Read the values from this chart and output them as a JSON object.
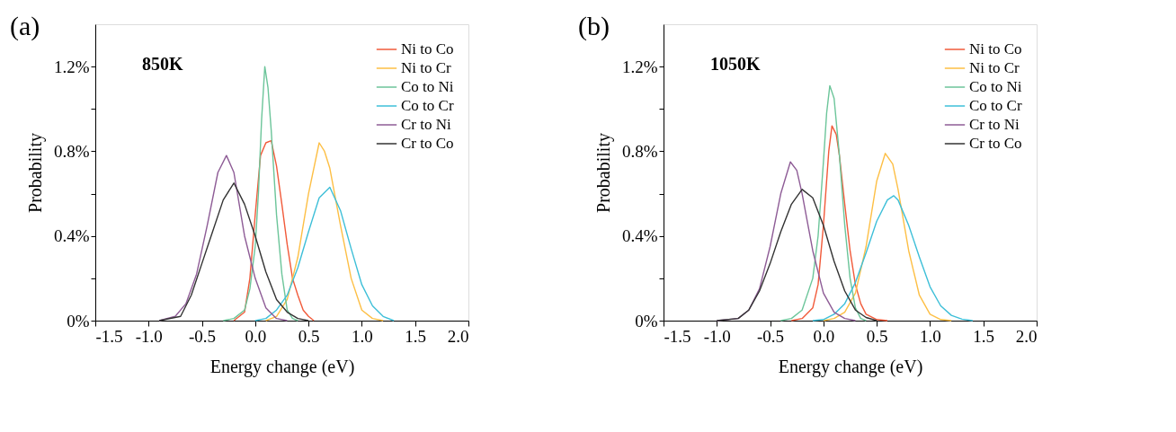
{
  "chart_data": [
    {
      "type": "line",
      "annotations": [
        "(a)",
        "850K"
      ],
      "xlabel": "Energy change (eV)",
      "ylabel": "Probability",
      "xlim": [
        -1.5,
        2.0
      ],
      "xticks": [
        {
          "value": -1.5,
          "label": "-1.5"
        },
        {
          "value": -1.0,
          "label": "-1.0"
        },
        {
          "value": -0.5,
          "label": "-0.5"
        },
        {
          "value": 0,
          "label": "0.0"
        },
        {
          "value": 0.5,
          "label": "0.5"
        },
        {
          "value": 1.0,
          "label": "1.0"
        },
        {
          "value": 1.5,
          "label": "1.5"
        },
        {
          "value": 2.0,
          "label": "2.0"
        }
      ],
      "ylim": [
        0,
        1.4
      ],
      "yticks": [
        {
          "value": 0,
          "label": "0%"
        },
        {
          "value": 0.2,
          "label": null
        },
        {
          "value": 0.4,
          "label": "0.4%"
        },
        {
          "value": 0.6,
          "label": null
        },
        {
          "value": 0.8,
          "label": "0.8%"
        },
        {
          "value": 1.0,
          "label": null
        },
        {
          "value": 1.2,
          "label": "1.2%"
        }
      ],
      "grid": false,
      "legend": "top right",
      "marker": "none",
      "line_style": "solid",
      "series": [
        {
          "name": "Ni to Co",
          "color": "#f15a3a",
          "x": [
            -0.2,
            -0.1,
            -0.05,
            0,
            0.05,
            0.1,
            0.15,
            0.2,
            0.25,
            0.3,
            0.35,
            0.4,
            0.45,
            0.5,
            0.55
          ],
          "values": [
            0,
            0.04,
            0.2,
            0.5,
            0.78,
            0.84,
            0.85,
            0.73,
            0.55,
            0.36,
            0.2,
            0.12,
            0.05,
            0.02,
            0
          ]
        },
        {
          "name": "Ni to Cr",
          "color": "#fdbf45",
          "x": [
            0.1,
            0.2,
            0.3,
            0.4,
            0.5,
            0.6,
            0.65,
            0.7,
            0.8,
            0.9,
            1.0,
            1.1,
            1.2
          ],
          "values": [
            0,
            0.02,
            0.1,
            0.3,
            0.6,
            0.84,
            0.8,
            0.72,
            0.45,
            0.2,
            0.05,
            0.01,
            0
          ]
        },
        {
          "name": "Co to Ni",
          "color": "#6cc59a",
          "x": [
            -0.3,
            -0.2,
            -0.1,
            -0.05,
            0,
            0.03,
            0.06,
            0.09,
            0.12,
            0.15,
            0.2,
            0.25,
            0.3,
            0.35,
            0.4
          ],
          "values": [
            0,
            0.01,
            0.05,
            0.15,
            0.35,
            0.6,
            0.95,
            1.2,
            1.1,
            0.9,
            0.5,
            0.22,
            0.05,
            0.01,
            0
          ]
        },
        {
          "name": "Co to Cr",
          "color": "#3ebfd8",
          "x": [
            0,
            0.1,
            0.2,
            0.3,
            0.4,
            0.5,
            0.6,
            0.7,
            0.8,
            0.9,
            1.0,
            1.1,
            1.2,
            1.3
          ],
          "values": [
            0,
            0.01,
            0.05,
            0.12,
            0.25,
            0.42,
            0.58,
            0.63,
            0.52,
            0.34,
            0.17,
            0.07,
            0.02,
            0
          ]
        },
        {
          "name": "Cr to Ni",
          "color": "#8e5c96",
          "x": [
            -0.9,
            -0.75,
            -0.65,
            -0.55,
            -0.45,
            -0.35,
            -0.27,
            -0.2,
            -0.1,
            0,
            0.1,
            0.2,
            0.3
          ],
          "values": [
            0,
            0.02,
            0.08,
            0.22,
            0.45,
            0.7,
            0.78,
            0.7,
            0.4,
            0.2,
            0.06,
            0.01,
            0
          ]
        },
        {
          "name": "Cr to Co",
          "color": "#333333",
          "x": [
            -0.9,
            -0.7,
            -0.6,
            -0.5,
            -0.4,
            -0.3,
            -0.2,
            -0.1,
            0,
            0.1,
            0.2,
            0.3,
            0.4,
            0.5
          ],
          "values": [
            0,
            0.02,
            0.12,
            0.27,
            0.42,
            0.57,
            0.65,
            0.55,
            0.4,
            0.23,
            0.1,
            0.04,
            0.01,
            0
          ]
        }
      ]
    },
    {
      "type": "line",
      "annotations": [
        "(b)",
        "1050K"
      ],
      "xlabel": "Energy change (eV)",
      "ylabel": "Probability",
      "xlim": [
        -1.5,
        2.0
      ],
      "xticks": [
        {
          "value": -1.5,
          "label": "-1.5"
        },
        {
          "value": -1.0,
          "label": "-1.0"
        },
        {
          "value": -0.5,
          "label": "-0.5"
        },
        {
          "value": 0,
          "label": "0.0"
        },
        {
          "value": 0.5,
          "label": "0.5"
        },
        {
          "value": 1.0,
          "label": "1.0"
        },
        {
          "value": 1.5,
          "label": "1.5"
        },
        {
          "value": 2.0,
          "label": "2.0"
        }
      ],
      "ylim": [
        0,
        1.4
      ],
      "yticks": [
        {
          "value": 0,
          "label": "0%"
        },
        {
          "value": 0.2,
          "label": null
        },
        {
          "value": 0.4,
          "label": "0.4%"
        },
        {
          "value": 0.6,
          "label": null
        },
        {
          "value": 0.8,
          "label": "0.8%"
        },
        {
          "value": 1.0,
          "label": null
        },
        {
          "value": 1.2,
          "label": "1.2%"
        }
      ],
      "grid": false,
      "legend": "top right",
      "marker": "none",
      "line_style": "solid",
      "series": [
        {
          "name": "Ni to Co",
          "color": "#f15a3a",
          "x": [
            -0.3,
            -0.2,
            -0.1,
            -0.05,
            0,
            0.05,
            0.08,
            0.12,
            0.15,
            0.2,
            0.25,
            0.3,
            0.35,
            0.4,
            0.5,
            0.6
          ],
          "values": [
            0,
            0.01,
            0.06,
            0.17,
            0.45,
            0.8,
            0.92,
            0.88,
            0.78,
            0.55,
            0.33,
            0.17,
            0.08,
            0.03,
            0.005,
            0
          ]
        },
        {
          "name": "Ni to Cr",
          "color": "#fdbf45",
          "x": [
            0.0,
            0.1,
            0.2,
            0.3,
            0.4,
            0.5,
            0.58,
            0.65,
            0.7,
            0.8,
            0.9,
            1.0,
            1.1,
            1.2
          ],
          "values": [
            0,
            0.01,
            0.04,
            0.13,
            0.35,
            0.66,
            0.79,
            0.74,
            0.62,
            0.33,
            0.12,
            0.03,
            0.005,
            0
          ]
        },
        {
          "name": "Co to Ni",
          "color": "#6cc59a",
          "x": [
            -0.4,
            -0.3,
            -0.2,
            -0.1,
            -0.05,
            0,
            0.03,
            0.06,
            0.1,
            0.15,
            0.2,
            0.25,
            0.3,
            0.35,
            0.4
          ],
          "values": [
            0,
            0.01,
            0.05,
            0.2,
            0.4,
            0.75,
            0.98,
            1.11,
            1.05,
            0.78,
            0.45,
            0.2,
            0.06,
            0.01,
            0
          ]
        },
        {
          "name": "Co to Cr",
          "color": "#3ebfd8",
          "x": [
            -0.1,
            0,
            0.1,
            0.2,
            0.3,
            0.4,
            0.5,
            0.6,
            0.66,
            0.7,
            0.8,
            0.9,
            1.0,
            1.1,
            1.2,
            1.3,
            1.4
          ],
          "values": [
            0,
            0.005,
            0.03,
            0.08,
            0.18,
            0.32,
            0.47,
            0.57,
            0.59,
            0.57,
            0.45,
            0.3,
            0.16,
            0.07,
            0.025,
            0.007,
            0
          ]
        },
        {
          "name": "Cr to Ni",
          "color": "#8e5c96",
          "x": [
            -1.0,
            -0.8,
            -0.7,
            -0.6,
            -0.5,
            -0.4,
            -0.31,
            -0.25,
            -0.2,
            -0.1,
            0,
            0.1,
            0.2,
            0.3
          ],
          "values": [
            0,
            0.01,
            0.05,
            0.15,
            0.35,
            0.6,
            0.75,
            0.71,
            0.6,
            0.33,
            0.13,
            0.04,
            0.01,
            0
          ]
        },
        {
          "name": "Cr to Co",
          "color": "#333333",
          "x": [
            -1.0,
            -0.8,
            -0.7,
            -0.6,
            -0.5,
            -0.4,
            -0.3,
            -0.2,
            -0.1,
            0,
            0.1,
            0.2,
            0.3,
            0.4,
            0.5
          ],
          "values": [
            0,
            0.01,
            0.05,
            0.14,
            0.27,
            0.42,
            0.55,
            0.62,
            0.58,
            0.45,
            0.28,
            0.14,
            0.05,
            0.015,
            0
          ]
        }
      ]
    }
  ]
}
